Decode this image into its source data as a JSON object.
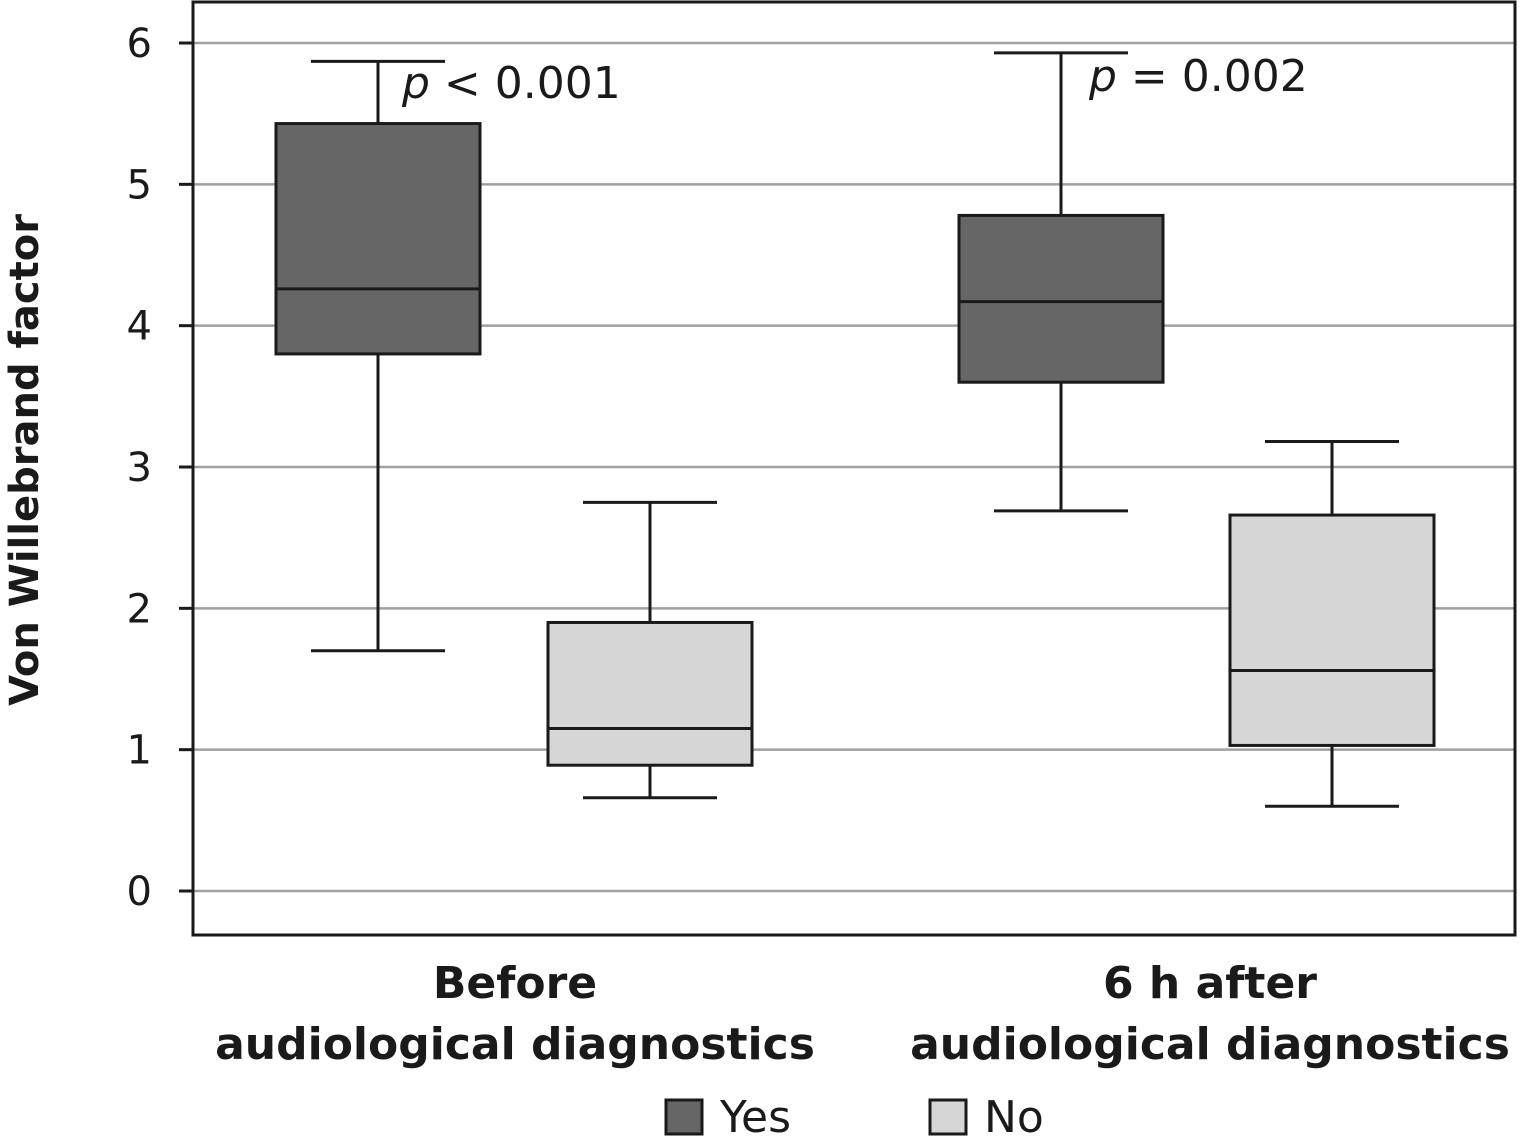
{
  "chart_data": {
    "type": "box",
    "ylabel": "Von Willebrand factor",
    "ylim": [
      0,
      6.3
    ],
    "yticks": [
      0,
      1,
      2,
      3,
      4,
      5,
      6
    ],
    "grid": "horizontal",
    "legend": {
      "position": "bottom-center",
      "entries": [
        {
          "name": "Yes",
          "color": "#666666"
        },
        {
          "name": "No",
          "color": "#d6d6d6"
        }
      ]
    },
    "categories": [
      {
        "lines": [
          "Before",
          "audiological diagnostics"
        ],
        "p_symbol": "p",
        "p_rest": "< 0.001"
      },
      {
        "lines": [
          "6 h after",
          "audiological diagnostics"
        ],
        "p_symbol": "p",
        "p_rest": "= 0.002"
      }
    ],
    "series": [
      {
        "name": "Yes",
        "color": "#666666",
        "boxes": [
          {
            "min": 1.7,
            "q1": 3.8,
            "median": 4.26,
            "q3": 5.43,
            "max": 5.87
          },
          {
            "min": 2.69,
            "q1": 3.6,
            "median": 4.17,
            "q3": 4.78,
            "max": 5.93
          }
        ]
      },
      {
        "name": "No",
        "color": "#d6d6d6",
        "boxes": [
          {
            "min": 0.66,
            "q1": 0.89,
            "median": 1.15,
            "q3": 1.9,
            "max": 2.75
          },
          {
            "min": 0.6,
            "q1": 1.03,
            "median": 1.56,
            "q3": 2.66,
            "max": 3.18
          }
        ]
      }
    ]
  }
}
